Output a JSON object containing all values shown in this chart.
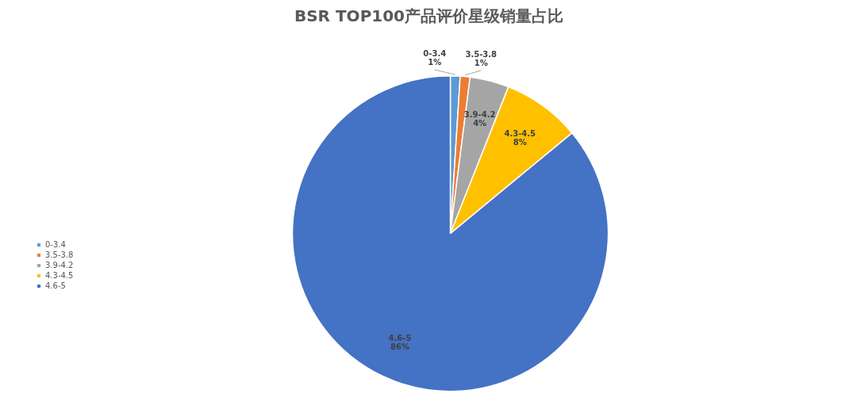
{
  "chart_data": {
    "type": "pie",
    "title": "BSR TOP100产品评价星级销量占比",
    "categories": [
      "0-3.4",
      "3.5-3.8",
      "3.9-4.2",
      "4.3-4.5",
      "4.6-5"
    ],
    "values": [
      1,
      1,
      4,
      8,
      86
    ],
    "colors": [
      "#5b9bd5",
      "#ed7d31",
      "#a5a5a5",
      "#ffc000",
      "#4472c4"
    ],
    "value_labels": [
      "1%",
      "1%",
      "4%",
      "8%",
      "86%"
    ],
    "legend": "left"
  }
}
